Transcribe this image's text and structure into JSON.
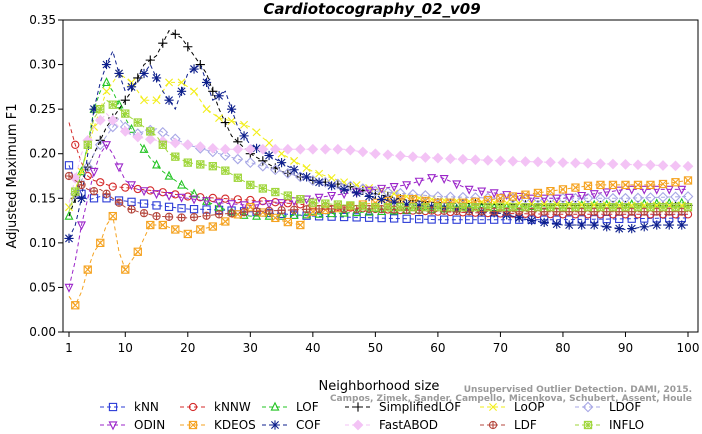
{
  "chart_data": {
    "type": "line",
    "title": "Cardiotocography_02_v09",
    "xlabel": "Neighborhood size",
    "ylabel": "Adjusted Maximum F1",
    "xlim": [
      1,
      100
    ],
    "ylim": [
      0,
      0.35
    ],
    "xticks": [
      1,
      10,
      20,
      30,
      40,
      50,
      60,
      70,
      80,
      90,
      100
    ],
    "yticks": [
      0.0,
      0.05,
      0.1,
      0.15,
      0.2,
      0.25,
      0.3,
      0.35
    ],
    "ytick_labels": [
      "0.00",
      "0.05",
      "0.10",
      "0.15",
      "0.20",
      "0.25",
      "0.30",
      "0.35"
    ],
    "grid": false,
    "legend_position": "bottom",
    "series": [
      {
        "name": "kNN",
        "color": "#2b3bd6",
        "marker": "square",
        "points": [
          [
            1,
            0.187
          ],
          [
            2,
            0.168
          ],
          [
            3,
            0.155
          ],
          [
            4,
            0.148
          ],
          [
            5,
            0.15
          ],
          [
            6,
            0.152
          ],
          [
            8,
            0.148
          ],
          [
            10,
            0.147
          ],
          [
            15,
            0.142
          ],
          [
            20,
            0.138
          ],
          [
            25,
            0.137
          ],
          [
            30,
            0.135
          ],
          [
            40,
            0.13
          ],
          [
            50,
            0.128
          ],
          [
            60,
            0.126
          ],
          [
            70,
            0.126
          ],
          [
            80,
            0.126
          ],
          [
            90,
            0.127
          ],
          [
            100,
            0.128
          ]
        ]
      },
      {
        "name": "kNNW",
        "color": "#d42a2a",
        "marker": "circle",
        "points": [
          [
            1,
            0.235
          ],
          [
            2,
            0.21
          ],
          [
            3,
            0.19
          ],
          [
            4,
            0.175
          ],
          [
            5,
            0.17
          ],
          [
            6,
            0.168
          ],
          [
            8,
            0.163
          ],
          [
            10,
            0.162
          ],
          [
            15,
            0.158
          ],
          [
            20,
            0.152
          ],
          [
            25,
            0.15
          ],
          [
            30,
            0.148
          ],
          [
            40,
            0.142
          ],
          [
            50,
            0.138
          ],
          [
            60,
            0.135
          ],
          [
            70,
            0.133
          ],
          [
            80,
            0.132
          ],
          [
            90,
            0.132
          ],
          [
            100,
            0.132
          ]
        ]
      },
      {
        "name": "LOF",
        "color": "#22c422",
        "marker": "triangle",
        "points": [
          [
            1,
            0.13
          ],
          [
            2,
            0.15
          ],
          [
            3,
            0.18
          ],
          [
            4,
            0.21
          ],
          [
            5,
            0.25
          ],
          [
            6,
            0.27
          ],
          [
            7,
            0.28
          ],
          [
            8,
            0.27
          ],
          [
            9,
            0.255
          ],
          [
            10,
            0.24
          ],
          [
            12,
            0.215
          ],
          [
            14,
            0.195
          ],
          [
            16,
            0.18
          ],
          [
            18,
            0.17
          ],
          [
            20,
            0.16
          ],
          [
            22,
            0.15
          ],
          [
            25,
            0.14
          ],
          [
            28,
            0.132
          ],
          [
            30,
            0.13
          ],
          [
            35,
            0.13
          ],
          [
            40,
            0.132
          ],
          [
            50,
            0.135
          ],
          [
            60,
            0.138
          ],
          [
            70,
            0.14
          ],
          [
            80,
            0.142
          ],
          [
            90,
            0.143
          ],
          [
            100,
            0.145
          ]
        ]
      },
      {
        "name": "SimplifiedLOF",
        "color": "#000000",
        "marker": "plus",
        "points": [
          [
            1,
            0.13
          ],
          [
            3,
            0.17
          ],
          [
            5,
            0.2
          ],
          [
            7,
            0.23
          ],
          [
            9,
            0.25
          ],
          [
            11,
            0.27
          ],
          [
            13,
            0.3
          ],
          [
            15,
            0.31
          ],
          [
            17,
            0.338
          ],
          [
            19,
            0.33
          ],
          [
            21,
            0.31
          ],
          [
            23,
            0.29
          ],
          [
            25,
            0.25
          ],
          [
            27,
            0.22
          ],
          [
            30,
            0.2
          ],
          [
            35,
            0.18
          ],
          [
            40,
            0.17
          ],
          [
            45,
            0.165
          ],
          [
            50,
            0.155
          ],
          [
            55,
            0.148
          ],
          [
            60,
            0.145
          ],
          [
            70,
            0.143
          ],
          [
            80,
            0.142
          ],
          [
            90,
            0.142
          ],
          [
            100,
            0.142
          ]
        ]
      },
      {
        "name": "LoOP",
        "color": "#f2ee1a",
        "marker": "x",
        "points": [
          [
            1,
            0.14
          ],
          [
            3,
            0.18
          ],
          [
            5,
            0.23
          ],
          [
            7,
            0.27
          ],
          [
            9,
            0.29
          ],
          [
            11,
            0.28
          ],
          [
            13,
            0.26
          ],
          [
            15,
            0.26
          ],
          [
            17,
            0.28
          ],
          [
            19,
            0.28
          ],
          [
            21,
            0.27
          ],
          [
            23,
            0.25
          ],
          [
            25,
            0.24
          ],
          [
            28,
            0.235
          ],
          [
            30,
            0.23
          ],
          [
            35,
            0.2
          ],
          [
            40,
            0.18
          ],
          [
            45,
            0.168
          ],
          [
            50,
            0.16
          ],
          [
            55,
            0.152
          ],
          [
            60,
            0.148
          ],
          [
            70,
            0.145
          ],
          [
            80,
            0.143
          ],
          [
            90,
            0.142
          ],
          [
            100,
            0.142
          ]
        ]
      },
      {
        "name": "LDOF",
        "color": "#a7a7e6",
        "marker": "diamond",
        "points": [
          [
            1,
            0.14
          ],
          [
            3,
            0.17
          ],
          [
            5,
            0.2
          ],
          [
            7,
            0.22
          ],
          [
            9,
            0.24
          ],
          [
            11,
            0.22
          ],
          [
            13,
            0.225
          ],
          [
            15,
            0.228
          ],
          [
            17,
            0.22
          ],
          [
            20,
            0.21
          ],
          [
            25,
            0.2
          ],
          [
            30,
            0.19
          ],
          [
            35,
            0.18
          ],
          [
            40,
            0.17
          ],
          [
            45,
            0.165
          ],
          [
            50,
            0.158
          ],
          [
            60,
            0.152
          ],
          [
            70,
            0.15
          ],
          [
            80,
            0.15
          ],
          [
            90,
            0.15
          ],
          [
            100,
            0.152
          ]
        ]
      },
      {
        "name": "ODIN",
        "color": "#9b25c9",
        "marker": "triangle-down",
        "points": [
          [
            1,
            0.05
          ],
          [
            2,
            0.08
          ],
          [
            3,
            0.12
          ],
          [
            4,
            0.15
          ],
          [
            5,
            0.18
          ],
          [
            6,
            0.2
          ],
          [
            7,
            0.21
          ],
          [
            8,
            0.2
          ],
          [
            10,
            0.17
          ],
          [
            12,
            0.16
          ],
          [
            15,
            0.155
          ],
          [
            20,
            0.15
          ],
          [
            25,
            0.145
          ],
          [
            30,
            0.142
          ],
          [
            35,
            0.145
          ],
          [
            40,
            0.15
          ],
          [
            45,
            0.155
          ],
          [
            50,
            0.16
          ],
          [
            55,
            0.165
          ],
          [
            60,
            0.175
          ],
          [
            65,
            0.16
          ],
          [
            70,
            0.155
          ],
          [
            75,
            0.15
          ],
          [
            80,
            0.15
          ],
          [
            85,
            0.155
          ],
          [
            90,
            0.16
          ],
          [
            95,
            0.16
          ],
          [
            100,
            0.16
          ]
        ]
      },
      {
        "name": "KDEOS",
        "color": "#f5a21f",
        "marker": "square-x",
        "points": [
          [
            1,
            0.04
          ],
          [
            2,
            0.03
          ],
          [
            3,
            0.045
          ],
          [
            4,
            0.07
          ],
          [
            5,
            0.09
          ],
          [
            6,
            0.1
          ],
          [
            7,
            0.12
          ],
          [
            8,
            0.13
          ],
          [
            9,
            0.09
          ],
          [
            10,
            0.07
          ],
          [
            12,
            0.09
          ],
          [
            14,
            0.12
          ],
          [
            16,
            0.12
          ],
          [
            18,
            0.115
          ],
          [
            20,
            0.11
          ],
          [
            22,
            0.115
          ],
          [
            25,
            0.12
          ],
          [
            30,
            0.14
          ],
          [
            35,
            0.125
          ],
          [
            38,
            0.12
          ],
          [
            40,
            0.135
          ],
          [
            45,
            0.14
          ],
          [
            50,
            0.145
          ],
          [
            55,
            0.15
          ],
          [
            60,
            0.145
          ],
          [
            65,
            0.145
          ],
          [
            70,
            0.15
          ],
          [
            75,
            0.155
          ],
          [
            80,
            0.16
          ],
          [
            85,
            0.165
          ],
          [
            90,
            0.165
          ],
          [
            95,
            0.165
          ],
          [
            100,
            0.17
          ]
        ]
      },
      {
        "name": "COF",
        "color": "#0d1f8c",
        "marker": "star",
        "points": [
          [
            1,
            0.105
          ],
          [
            2,
            0.12
          ],
          [
            3,
            0.15
          ],
          [
            4,
            0.2
          ],
          [
            5,
            0.25
          ],
          [
            6,
            0.28
          ],
          [
            7,
            0.3
          ],
          [
            8,
            0.315
          ],
          [
            9,
            0.29
          ],
          [
            10,
            0.27
          ],
          [
            12,
            0.28
          ],
          [
            14,
            0.3
          ],
          [
            16,
            0.27
          ],
          [
            18,
            0.25
          ],
          [
            20,
            0.29
          ],
          [
            22,
            0.3
          ],
          [
            24,
            0.26
          ],
          [
            26,
            0.27
          ],
          [
            28,
            0.23
          ],
          [
            30,
            0.21
          ],
          [
            35,
            0.19
          ],
          [
            40,
            0.17
          ],
          [
            45,
            0.16
          ],
          [
            50,
            0.15
          ],
          [
            55,
            0.143
          ],
          [
            60,
            0.14
          ],
          [
            70,
            0.133
          ],
          [
            75,
            0.125
          ],
          [
            80,
            0.12
          ],
          [
            85,
            0.12
          ],
          [
            90,
            0.115
          ],
          [
            95,
            0.12
          ],
          [
            100,
            0.12
          ]
        ]
      },
      {
        "name": "FastABOD",
        "color": "#f3c3f5",
        "marker": "diamond-fill",
        "points": [
          [
            1,
            0.145
          ],
          [
            3,
            0.2
          ],
          [
            5,
            0.23
          ],
          [
            7,
            0.245
          ],
          [
            9,
            0.23
          ],
          [
            11,
            0.22
          ],
          [
            15,
            0.215
          ],
          [
            20,
            0.21
          ],
          [
            25,
            0.205
          ],
          [
            30,
            0.205
          ],
          [
            35,
            0.205
          ],
          [
            40,
            0.205
          ],
          [
            45,
            0.205
          ],
          [
            50,
            0.2
          ],
          [
            55,
            0.197
          ],
          [
            60,
            0.195
          ],
          [
            70,
            0.192
          ],
          [
            80,
            0.19
          ],
          [
            90,
            0.188
          ],
          [
            100,
            0.186
          ]
        ]
      },
      {
        "name": "LDF",
        "color": "#b5473d",
        "marker": "circle-plus",
        "points": [
          [
            1,
            0.175
          ],
          [
            2,
            0.17
          ],
          [
            3,
            0.165
          ],
          [
            4,
            0.16
          ],
          [
            5,
            0.158
          ],
          [
            6,
            0.16
          ],
          [
            8,
            0.15
          ],
          [
            10,
            0.14
          ],
          [
            12,
            0.135
          ],
          [
            15,
            0.13
          ],
          [
            20,
            0.128
          ],
          [
            25,
            0.132
          ],
          [
            30,
            0.135
          ],
          [
            40,
            0.138
          ],
          [
            50,
            0.138
          ],
          [
            60,
            0.136
          ],
          [
            70,
            0.135
          ],
          [
            80,
            0.135
          ],
          [
            90,
            0.135
          ],
          [
            100,
            0.135
          ]
        ]
      },
      {
        "name": "INFLO",
        "color": "#9fd63a",
        "marker": "star-box",
        "points": [
          [
            1,
            0.135
          ],
          [
            3,
            0.18
          ],
          [
            5,
            0.24
          ],
          [
            7,
            0.26
          ],
          [
            9,
            0.25
          ],
          [
            11,
            0.24
          ],
          [
            13,
            0.23
          ],
          [
            15,
            0.22
          ],
          [
            17,
            0.2
          ],
          [
            20,
            0.19
          ],
          [
            25,
            0.185
          ],
          [
            30,
            0.165
          ],
          [
            35,
            0.155
          ],
          [
            40,
            0.145
          ],
          [
            50,
            0.14
          ],
          [
            60,
            0.14
          ],
          [
            70,
            0.14
          ],
          [
            80,
            0.14
          ],
          [
            90,
            0.14
          ],
          [
            100,
            0.14
          ]
        ]
      }
    ]
  },
  "watermark_lines": [
    "Unsupervised Outlier Detection. DAMI, 2015.",
    "Campos, Zimek, Sander, Campello, Micenkova, Schubert, Assent, Houle"
  ]
}
